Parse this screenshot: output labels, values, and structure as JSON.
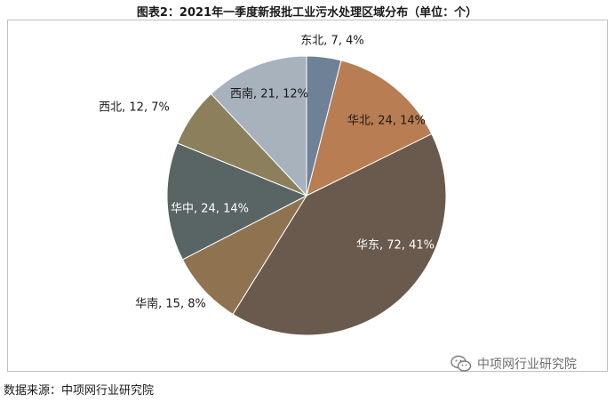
{
  "title": "图表2：2021年一季度新报批工业污水处理区域分布（单位：个）",
  "source": "数据来源：中项网行业研究院",
  "watermark": "中项网行业研究院",
  "chart_data": {
    "type": "pie",
    "title": "图表2：2021年一季度新报批工业污水处理区域分布（单位：个）",
    "start_angle_deg": 0,
    "direction": "clockwise",
    "slices": [
      {
        "name": "东北",
        "value": 7,
        "label": "东北, 7, 4%",
        "color": "#6f8197"
      },
      {
        "name": "华北",
        "value": 24,
        "label": "华北, 24, 14%",
        "color": "#b87d52"
      },
      {
        "name": "华东",
        "value": 72,
        "label": "华东, 72, 41%",
        "color": "#6a5a4e"
      },
      {
        "name": "华南",
        "value": 15,
        "label": "华南, 15, 8%",
        "color": "#8f7350"
      },
      {
        "name": "华中",
        "value": 24,
        "label": "华中, 24, 14%",
        "color": "#596465"
      },
      {
        "name": "西北",
        "value": 12,
        "label": "西北, 12, 7%",
        "color": "#8b7f5c"
      },
      {
        "name": "西南",
        "value": 21,
        "label": "西南, 21, 12%",
        "color": "#a7b2bd"
      }
    ],
    "legend": "none"
  }
}
